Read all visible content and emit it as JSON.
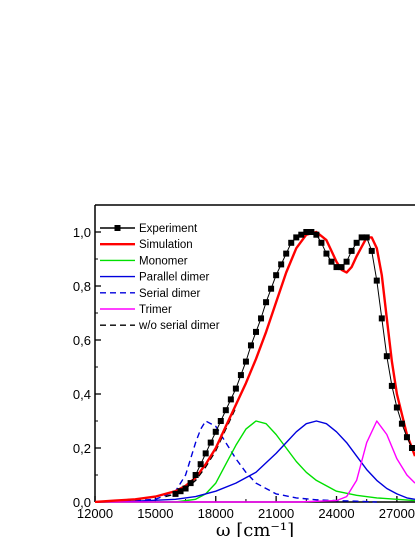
{
  "chart_data": {
    "type": "line",
    "xlabel": "ω [cm⁻¹]",
    "ylabel": "",
    "xlim": [
      12000,
      27900
    ],
    "ylim": [
      0,
      1.1
    ],
    "x_ticks": [
      12000,
      15000,
      18000,
      21000,
      24000,
      27000
    ],
    "x_tick_labels": [
      "12000",
      "15000",
      "18000",
      "21000",
      "24000",
      "27000"
    ],
    "y_ticks": [
      0.0,
      0.2,
      0.4,
      0.6,
      0.8,
      1.0
    ],
    "y_tick_labels": [
      "0,0",
      "0,2",
      "0,4",
      "0,6",
      "0,8",
      "1,0"
    ],
    "legend_position": "top-left",
    "grid": false,
    "series": [
      {
        "name": "Experiment",
        "color": "#000000",
        "style": "line-square-markers",
        "x": [
          16000,
          16250,
          16500,
          16750,
          17000,
          17250,
          17500,
          17750,
          18000,
          18250,
          18500,
          18750,
          19000,
          19250,
          19500,
          19750,
          20000,
          20250,
          20500,
          20750,
          21000,
          21250,
          21500,
          21750,
          22000,
          22250,
          22500,
          22750,
          23000,
          23250,
          23500,
          23750,
          24000,
          24250,
          24500,
          24750,
          25000,
          25250,
          25500,
          25750,
          26000,
          26250,
          26500,
          26750,
          27000,
          27250,
          27500,
          27750
        ],
        "y": [
          0.03,
          0.04,
          0.05,
          0.07,
          0.1,
          0.14,
          0.18,
          0.22,
          0.26,
          0.3,
          0.34,
          0.38,
          0.42,
          0.47,
          0.52,
          0.58,
          0.63,
          0.68,
          0.74,
          0.79,
          0.84,
          0.88,
          0.92,
          0.96,
          0.98,
          0.99,
          1.0,
          1.0,
          0.99,
          0.96,
          0.92,
          0.89,
          0.87,
          0.87,
          0.89,
          0.93,
          0.96,
          0.98,
          0.98,
          0.93,
          0.82,
          0.68,
          0.54,
          0.43,
          0.35,
          0.29,
          0.24,
          0.2
        ]
      },
      {
        "name": "Simulation",
        "color": "#ff0000",
        "style": "solid-thick",
        "x": [
          12000,
          13000,
          14000,
          15000,
          15500,
          16000,
          16500,
          17000,
          17500,
          18000,
          18500,
          19000,
          19500,
          20000,
          20500,
          21000,
          21500,
          22000,
          22500,
          23000,
          23500,
          24000,
          24250,
          24500,
          24750,
          25000,
          25500,
          25750,
          26000,
          26250,
          26500,
          26750,
          27000,
          27500,
          27900
        ],
        "y": [
          0.0,
          0.005,
          0.01,
          0.02,
          0.03,
          0.04,
          0.06,
          0.09,
          0.14,
          0.2,
          0.28,
          0.36,
          0.44,
          0.53,
          0.63,
          0.74,
          0.85,
          0.94,
          0.99,
          1.0,
          0.97,
          0.89,
          0.86,
          0.85,
          0.87,
          0.91,
          0.98,
          0.98,
          0.94,
          0.84,
          0.68,
          0.52,
          0.4,
          0.25,
          0.17
        ]
      },
      {
        "name": "Monomer",
        "color": "#00e000",
        "style": "solid",
        "x": [
          12000,
          14000,
          16000,
          17000,
          17500,
          18000,
          18500,
          19000,
          19500,
          20000,
          20500,
          21000,
          21500,
          22000,
          22500,
          23000,
          24000,
          25000,
          26000,
          27000,
          27900
        ],
        "y": [
          0.0,
          0.0,
          0.0,
          0.01,
          0.03,
          0.07,
          0.14,
          0.21,
          0.27,
          0.3,
          0.29,
          0.25,
          0.2,
          0.15,
          0.11,
          0.08,
          0.04,
          0.025,
          0.015,
          0.01,
          0.005
        ]
      },
      {
        "name": "Parallel dimer",
        "color": "#0000dd",
        "style": "solid",
        "x": [
          12000,
          14000,
          16000,
          17000,
          18000,
          19000,
          20000,
          21000,
          21500,
          22000,
          22500,
          23000,
          23500,
          24000,
          24500,
          25000,
          25500,
          26000,
          26500,
          27000,
          27500,
          27900
        ],
        "y": [
          0.0,
          0.003,
          0.01,
          0.02,
          0.04,
          0.07,
          0.11,
          0.18,
          0.22,
          0.26,
          0.29,
          0.3,
          0.29,
          0.26,
          0.22,
          0.17,
          0.12,
          0.08,
          0.05,
          0.03,
          0.015,
          0.01
        ]
      },
      {
        "name": "Serial dimer",
        "color": "#0000dd",
        "style": "dashed",
        "x": [
          12000,
          14000,
          15000,
          16000,
          16500,
          17000,
          17250,
          17500,
          18000,
          18500,
          19000,
          19500,
          20000,
          21000,
          22000,
          23000,
          24000,
          25000,
          26000
        ],
        "y": [
          0.0,
          0.005,
          0.01,
          0.04,
          0.1,
          0.22,
          0.27,
          0.3,
          0.28,
          0.22,
          0.16,
          0.11,
          0.07,
          0.03,
          0.015,
          0.008,
          0.005,
          0.003,
          0.0
        ]
      },
      {
        "name": "Trimer",
        "color": "#ff00ff",
        "style": "solid",
        "x": [
          12000,
          22000,
          24000,
          24500,
          25000,
          25500,
          26000,
          26500,
          27000,
          27500,
          27900
        ],
        "y": [
          0.0,
          0.0,
          0.005,
          0.02,
          0.08,
          0.22,
          0.3,
          0.25,
          0.16,
          0.1,
          0.07
        ]
      },
      {
        "name": "w/o serial dimer",
        "color": "#000000",
        "style": "dashed",
        "x": [
          15500,
          16000,
          16500,
          17000,
          17500,
          18000,
          18500,
          19000
        ],
        "y": [
          0.02,
          0.03,
          0.05,
          0.08,
          0.13,
          0.19,
          0.27,
          0.35
        ]
      }
    ]
  }
}
